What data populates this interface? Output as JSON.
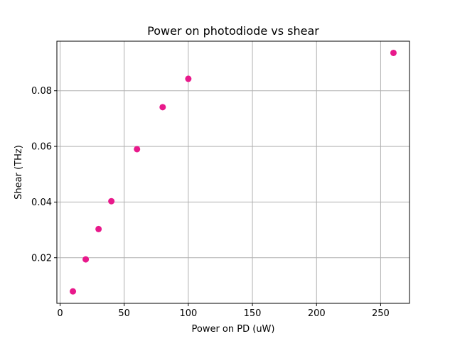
{
  "chart_data": {
    "type": "scatter",
    "title": "Power on photodiode vs shear",
    "xlabel": "Power on PD (uW)",
    "ylabel": "Shear (THz)",
    "xlim": [
      -2.5,
      272.5
    ],
    "ylim": [
      0.0036,
      0.0978
    ],
    "xticks": [
      0,
      50,
      100,
      150,
      200,
      250
    ],
    "yticks": [
      0.02,
      0.04,
      0.06,
      0.08
    ],
    "xtick_labels": [
      "0",
      "50",
      "100",
      "150",
      "200",
      "250"
    ],
    "ytick_labels": [
      "0.02",
      "0.04",
      "0.06",
      "0.08"
    ],
    "grid": true,
    "legend": false,
    "series": [
      {
        "color": "#e8198b",
        "points": [
          {
            "x": 10,
            "y": 0.0079
          },
          {
            "x": 20,
            "y": 0.0194
          },
          {
            "x": 30,
            "y": 0.0303
          },
          {
            "x": 40,
            "y": 0.0403
          },
          {
            "x": 60,
            "y": 0.059
          },
          {
            "x": 80,
            "y": 0.0741
          },
          {
            "x": 100,
            "y": 0.0843
          },
          {
            "x": 260,
            "y": 0.0936
          }
        ]
      }
    ]
  }
}
